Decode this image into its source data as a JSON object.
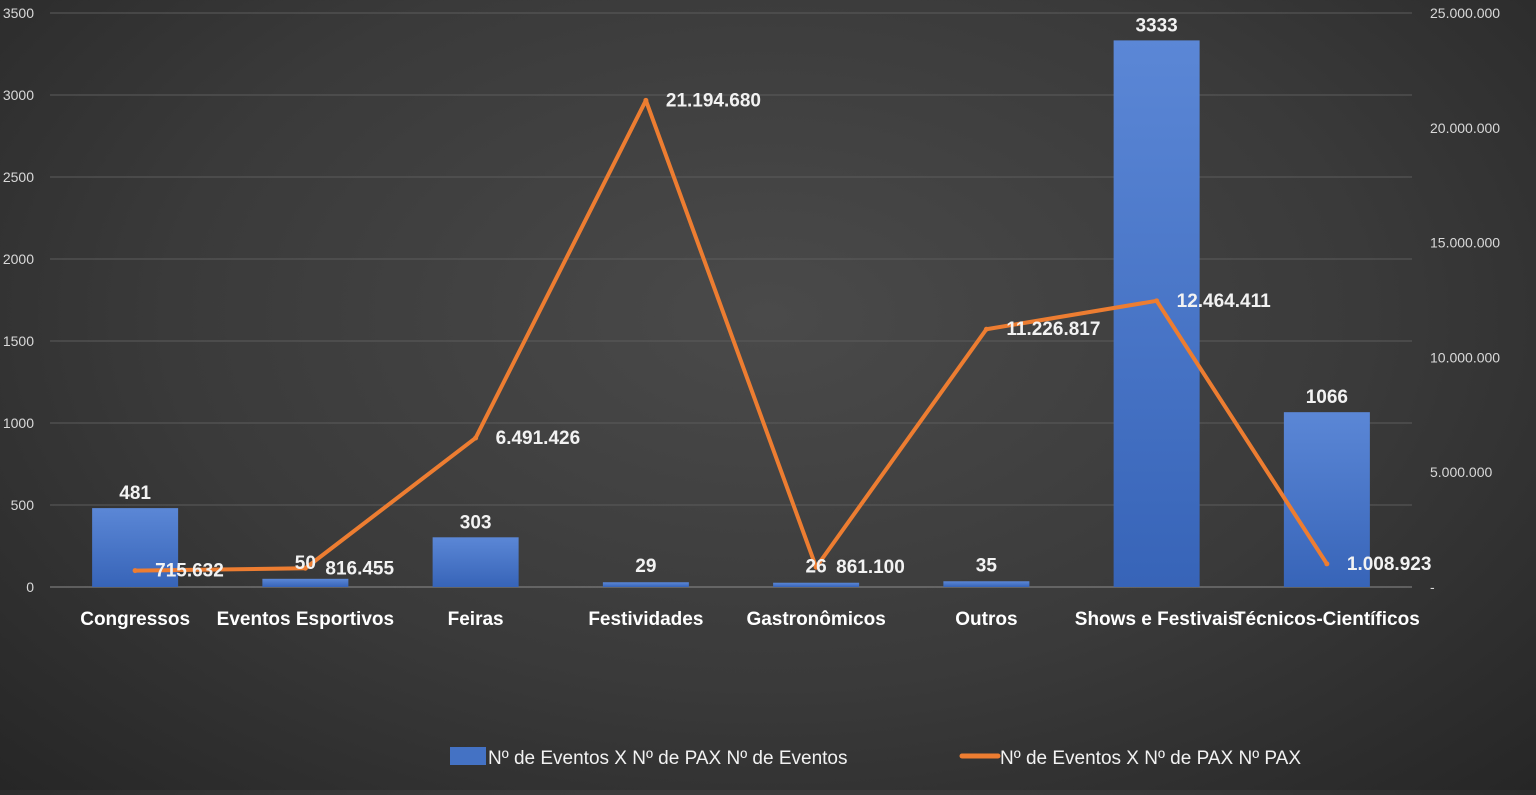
{
  "chart_data": {
    "type": "bar",
    "categories": [
      "Congressos",
      "Eventos Esportivos",
      "Feiras",
      "Festividades",
      "Gastronômicos",
      "Outros",
      "Shows e Festivais",
      "Técnicos-Científicos"
    ],
    "series": [
      {
        "name": "Nº de Eventos X Nº de PAX Nº de Eventos",
        "type": "bar",
        "axis": "left",
        "values": [
          481,
          50,
          303,
          29,
          26,
          35,
          3333,
          1066
        ],
        "labels": [
          "481",
          "50",
          "303",
          "29",
          "26",
          "35",
          "3333",
          "1066"
        ],
        "color": "#4472C4"
      },
      {
        "name": "Nº de Eventos X Nº de PAX Nº PAX",
        "type": "line",
        "axis": "right",
        "values": [
          715632,
          816455,
          6491426,
          21194680,
          861100,
          11226817,
          12464411,
          1008923
        ],
        "labels": [
          "715.632",
          "816.455",
          "6.491.426",
          "21.194.680",
          "861.100",
          "11.226.817",
          "12.464.411",
          "1.008.923"
        ],
        "color": "#ED7D31"
      }
    ],
    "y_left": {
      "min": 0,
      "max": 3500,
      "ticks": [
        0,
        500,
        1000,
        1500,
        2000,
        2500,
        3000,
        3500
      ],
      "tick_labels": [
        "0",
        "500",
        "1000",
        "1500",
        "2000",
        "2500",
        "3000",
        "3500"
      ]
    },
    "y_right": {
      "min": 0,
      "max": 25000000,
      "ticks": [
        0,
        5000000,
        10000000,
        15000000,
        20000000,
        25000000
      ],
      "tick_labels": [
        "-",
        "5.000.000",
        "10.000.000",
        "15.000.000",
        "20.000.000",
        "25.000.000"
      ]
    },
    "grid": true,
    "legend_position": "bottom"
  }
}
